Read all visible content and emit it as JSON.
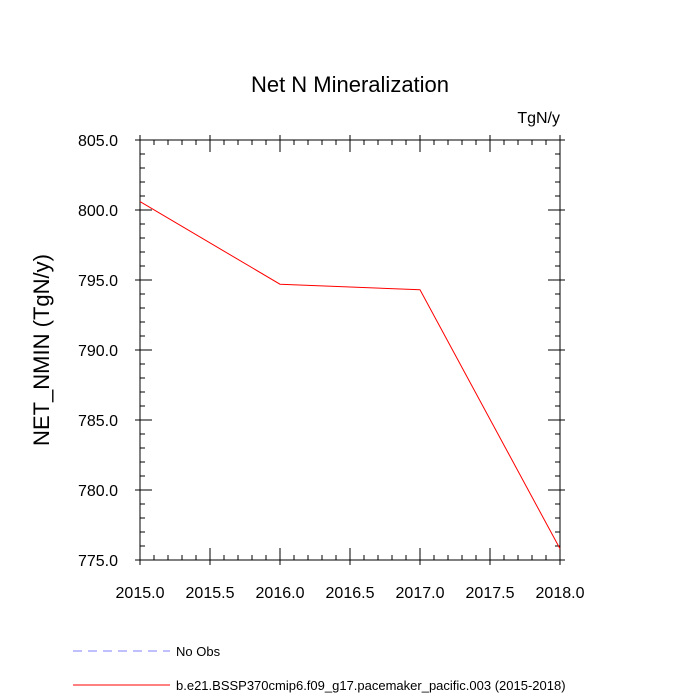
{
  "chart_data": {
    "type": "line",
    "title": "Net N Mineralization",
    "units": "TgN/y",
    "xlabel": "",
    "ylabel": "NET_NMIN  (TgN/y)",
    "xlim": [
      2015.0,
      2018.0
    ],
    "ylim": [
      775.0,
      805.0
    ],
    "x_ticks": [
      2015.0,
      2015.5,
      2016.0,
      2016.5,
      2017.0,
      2017.5,
      2018.0
    ],
    "x_tick_labels": [
      "2015.0",
      "2015.5",
      "2016.0",
      "2016.5",
      "2017.0",
      "2017.5",
      "2018.0"
    ],
    "y_ticks": [
      775.0,
      780.0,
      785.0,
      790.0,
      795.0,
      800.0,
      805.0
    ],
    "y_tick_labels": [
      "775.0",
      "780.0",
      "785.0",
      "790.0",
      "795.0",
      "800.0",
      "805.0"
    ],
    "grid": false,
    "legend_position": "bottom",
    "series": [
      {
        "name": "b.e21.BSSP370cmip6.f09_g17.pacemaker_pacific.003 (2015-2018)",
        "color": "#ff0000",
        "dash": "solid",
        "x": [
          2015.0,
          2016.0,
          2017.0,
          2018.0
        ],
        "y": [
          800.6,
          794.7,
          794.3,
          775.8
        ]
      }
    ],
    "legend": [
      {
        "label": "No Obs",
        "color": "#8080ff",
        "dash": "dashed"
      },
      {
        "label": "b.e21.BSSP370cmip6.f09_g17.pacemaker_pacific.003 (2015-2018)",
        "color": "#ff0000",
        "dash": "solid"
      }
    ]
  }
}
